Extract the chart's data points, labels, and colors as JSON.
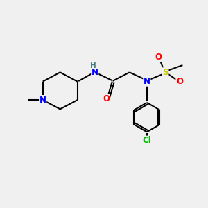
{
  "bg_color": "#f0f0f0",
  "atom_colors": {
    "N": "#0000ff",
    "NH": "#4a8080",
    "H": "#4a8080",
    "O": "#ff0000",
    "S": "#cccc00",
    "Cl": "#00bb00",
    "C": "#000000"
  },
  "bond_color": "#000000",
  "bond_width": 1.5,
  "fig_size": [
    3.0,
    3.0
  ],
  "dpi": 100,
  "xlim": [
    0,
    10
  ],
  "ylim": [
    0,
    10
  ]
}
